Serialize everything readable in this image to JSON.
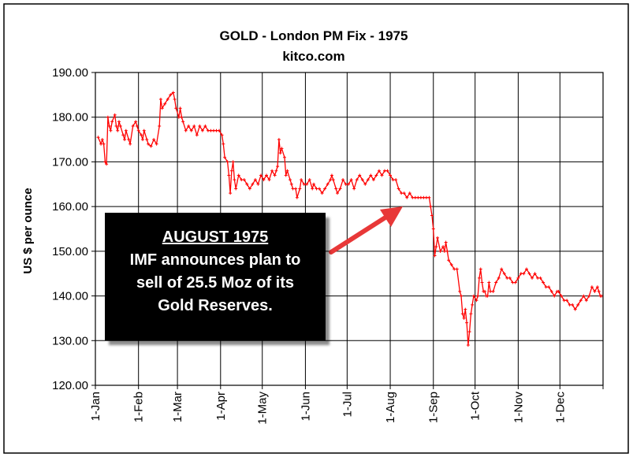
{
  "chart_data": {
    "type": "line",
    "title": "GOLD  -  London PM Fix  -  1975",
    "subtitle": "kitco.com",
    "ylabel": "US $ per ounce",
    "xlabel": "",
    "ylim": [
      120,
      190
    ],
    "yticks": [
      "120.00",
      "130.00",
      "140.00",
      "150.00",
      "160.00",
      "170.00",
      "180.00",
      "190.00"
    ],
    "xlim": [
      0,
      365
    ],
    "xticks": [
      {
        "label": "1-Jan",
        "day": 0
      },
      {
        "label": "1-Feb",
        "day": 31
      },
      {
        "label": "1-Mar",
        "day": 59
      },
      {
        "label": "1-Apr",
        "day": 90
      },
      {
        "label": "1-May",
        "day": 120
      },
      {
        "label": "1-Jun",
        "day": 151
      },
      {
        "label": "1-Jul",
        "day": 181
      },
      {
        "label": "1-Aug",
        "day": 212
      },
      {
        "label": "1-Sep",
        "day": 243
      },
      {
        "label": "1-Oct",
        "day": 273
      },
      {
        "label": "1-Nov",
        "day": 304
      },
      {
        "label": "1-Dec",
        "day": 334
      }
    ],
    "grid": true,
    "series": [
      {
        "name": "London PM Fix",
        "color": "#ff0000",
        "points": [
          [
            2,
            175.5
          ],
          [
            4,
            174
          ],
          [
            5,
            175
          ],
          [
            6,
            174
          ],
          [
            7,
            170
          ],
          [
            8,
            169.5
          ],
          [
            9,
            180
          ],
          [
            10,
            178
          ],
          [
            11,
            177
          ],
          [
            12,
            179
          ],
          [
            14,
            180.5
          ],
          [
            15,
            178
          ],
          [
            16,
            177
          ],
          [
            17,
            179
          ],
          [
            18,
            178
          ],
          [
            20,
            176
          ],
          [
            21,
            175
          ],
          [
            22,
            177
          ],
          [
            24,
            175
          ],
          [
            25,
            174
          ],
          [
            27,
            178
          ],
          [
            29,
            179
          ],
          [
            30,
            178
          ],
          [
            31,
            177
          ],
          [
            33,
            176
          ],
          [
            34,
            175
          ],
          [
            35,
            177
          ],
          [
            37,
            175
          ],
          [
            38,
            174
          ],
          [
            40,
            173.5
          ],
          [
            42,
            175
          ],
          [
            44,
            174
          ],
          [
            46,
            178
          ],
          [
            47,
            184
          ],
          [
            48,
            182
          ],
          [
            50,
            183
          ],
          [
            52,
            184
          ],
          [
            54,
            185
          ],
          [
            56,
            185.5
          ],
          [
            57,
            184
          ],
          [
            58,
            182
          ],
          [
            60,
            180
          ],
          [
            61,
            182
          ],
          [
            62,
            180
          ],
          [
            63,
            179
          ],
          [
            65,
            177
          ],
          [
            67,
            178
          ],
          [
            69,
            177
          ],
          [
            71,
            178
          ],
          [
            73,
            176
          ],
          [
            75,
            178
          ],
          [
            77,
            177
          ],
          [
            79,
            178
          ],
          [
            81,
            177
          ],
          [
            83,
            177
          ],
          [
            85,
            177
          ],
          [
            87,
            177
          ],
          [
            89,
            177
          ],
          [
            91,
            176
          ],
          [
            92,
            174
          ],
          [
            93,
            171
          ],
          [
            95,
            170
          ],
          [
            96,
            167
          ],
          [
            97,
            163
          ],
          [
            98,
            168
          ],
          [
            99,
            170
          ],
          [
            100,
            166
          ],
          [
            101,
            164
          ],
          [
            103,
            167
          ],
          [
            105,
            166
          ],
          [
            107,
            166
          ],
          [
            109,
            165
          ],
          [
            111,
            164
          ],
          [
            113,
            165
          ],
          [
            115,
            166
          ],
          [
            117,
            165
          ],
          [
            119,
            167
          ],
          [
            121,
            166
          ],
          [
            123,
            167
          ],
          [
            125,
            166
          ],
          [
            127,
            168
          ],
          [
            129,
            167
          ],
          [
            130,
            168
          ],
          [
            131,
            169
          ],
          [
            132,
            175
          ],
          [
            133,
            172
          ],
          [
            134,
            173
          ],
          [
            136,
            171
          ],
          [
            137,
            167
          ],
          [
            138,
            168
          ],
          [
            140,
            166
          ],
          [
            141,
            165
          ],
          [
            142,
            164
          ],
          [
            144,
            164
          ],
          [
            145,
            162
          ],
          [
            147,
            164
          ],
          [
            148,
            166
          ],
          [
            150,
            165
          ],
          [
            152,
            165
          ],
          [
            154,
            166
          ],
          [
            156,
            164
          ],
          [
            157,
            165
          ],
          [
            159,
            164
          ],
          [
            161,
            164
          ],
          [
            163,
            163
          ],
          [
            165,
            164
          ],
          [
            167,
            165
          ],
          [
            169,
            166
          ],
          [
            170,
            167
          ],
          [
            171,
            166
          ],
          [
            173,
            164
          ],
          [
            174,
            163
          ],
          [
            176,
            164
          ],
          [
            178,
            166
          ],
          [
            180,
            165
          ],
          [
            182,
            165
          ],
          [
            184,
            166
          ],
          [
            186,
            164
          ],
          [
            188,
            166
          ],
          [
            190,
            167
          ],
          [
            192,
            166
          ],
          [
            194,
            165
          ],
          [
            196,
            166
          ],
          [
            198,
            167
          ],
          [
            200,
            166
          ],
          [
            202,
            167
          ],
          [
            204,
            168
          ],
          [
            206,
            167
          ],
          [
            208,
            168
          ],
          [
            210,
            168
          ],
          [
            212,
            167
          ],
          [
            214,
            166
          ],
          [
            216,
            166
          ],
          [
            218,
            164
          ],
          [
            220,
            163
          ],
          [
            222,
            163
          ],
          [
            224,
            162
          ],
          [
            226,
            163
          ],
          [
            228,
            162
          ],
          [
            230,
            162
          ],
          [
            232,
            162
          ],
          [
            234,
            162
          ],
          [
            236,
            162
          ],
          [
            238,
            162
          ],
          [
            240,
            162
          ],
          [
            241,
            160
          ],
          [
            242,
            158
          ],
          [
            243,
            155
          ],
          [
            244,
            149
          ],
          [
            245,
            151
          ],
          [
            246,
            153
          ],
          [
            248,
            150
          ],
          [
            250,
            151
          ],
          [
            251,
            150
          ],
          [
            252,
            152
          ],
          [
            253,
            150
          ],
          [
            254,
            148
          ],
          [
            256,
            147
          ],
          [
            258,
            146
          ],
          [
            260,
            146
          ],
          [
            262,
            141
          ],
          [
            263,
            140
          ],
          [
            264,
            136
          ],
          [
            265,
            135
          ],
          [
            266,
            137
          ],
          [
            267,
            134
          ],
          [
            268,
            129
          ],
          [
            269,
            132
          ],
          [
            270,
            136
          ],
          [
            271,
            138
          ],
          [
            272,
            140
          ],
          [
            274,
            139
          ],
          [
            275,
            140
          ],
          [
            276,
            144
          ],
          [
            277,
            146
          ],
          [
            278,
            143
          ],
          [
            279,
            141
          ],
          [
            280,
            141
          ],
          [
            281,
            140
          ],
          [
            282,
            140
          ],
          [
            283,
            143
          ],
          [
            284,
            141
          ],
          [
            286,
            141
          ],
          [
            288,
            143
          ],
          [
            290,
            144
          ],
          [
            292,
            146
          ],
          [
            294,
            145
          ],
          [
            296,
            144
          ],
          [
            298,
            144
          ],
          [
            300,
            143
          ],
          [
            302,
            143
          ],
          [
            304,
            144
          ],
          [
            306,
            145
          ],
          [
            308,
            145
          ],
          [
            310,
            146
          ],
          [
            312,
            145
          ],
          [
            314,
            144
          ],
          [
            316,
            145
          ],
          [
            318,
            144
          ],
          [
            320,
            144
          ],
          [
            322,
            143
          ],
          [
            324,
            142
          ],
          [
            326,
            142
          ],
          [
            328,
            141
          ],
          [
            330,
            140
          ],
          [
            332,
            141
          ],
          [
            333,
            141
          ],
          [
            335,
            140
          ],
          [
            337,
            139
          ],
          [
            339,
            139
          ],
          [
            341,
            138
          ],
          [
            343,
            138
          ],
          [
            345,
            137
          ],
          [
            347,
            138
          ],
          [
            349,
            139
          ],
          [
            351,
            140
          ],
          [
            353,
            139
          ],
          [
            355,
            140
          ],
          [
            357,
            142
          ],
          [
            359,
            141
          ],
          [
            361,
            142
          ],
          [
            362,
            141
          ],
          [
            363,
            140
          ],
          [
            364,
            140
          ]
        ]
      }
    ],
    "annotation": {
      "headline": "AUGUST 1975",
      "lines": [
        "IMF announces plan to",
        "sell of 25.5 Moz of its",
        "Gold Reserves."
      ],
      "box_color": "#000000",
      "text_color": "#ffffff",
      "arrow_color": "#ee3333"
    }
  }
}
